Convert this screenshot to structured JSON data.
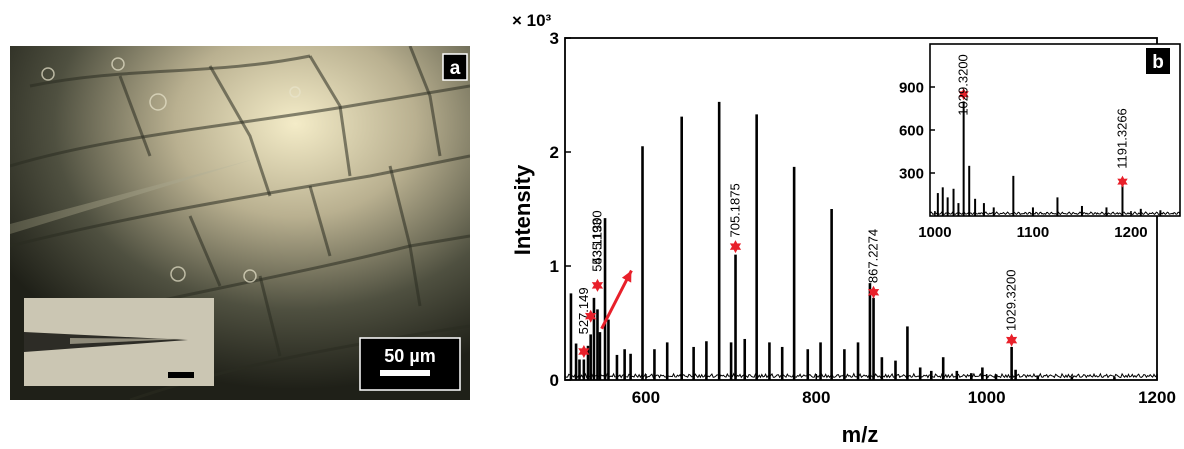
{
  "panel_a": {
    "label": "a",
    "scale_bar_text": "50 µm"
  },
  "chart_data": {
    "type": "line",
    "panel_label": "b",
    "xlabel": "m/z",
    "ylabel": "Intensity",
    "y_multiplier": "× 10³",
    "xlim": [
      505,
      1200
    ],
    "ylim": [
      0,
      3000
    ],
    "x_ticks": [
      600,
      800,
      1000,
      1200
    ],
    "y_ticks": [
      0,
      1000,
      2000,
      3000
    ],
    "y_tick_labels": [
      "0",
      "1",
      "2",
      "3"
    ],
    "peaks": [
      {
        "x": 512,
        "y": 760
      },
      {
        "x": 518,
        "y": 320
      },
      {
        "x": 522,
        "y": 180
      },
      {
        "x": 527.149,
        "y": 180
      },
      {
        "x": 532,
        "y": 300
      },
      {
        "x": 535.13,
        "y": 400
      },
      {
        "x": 539,
        "y": 720
      },
      {
        "x": 543.1193,
        "y": 620
      },
      {
        "x": 546,
        "y": 420
      },
      {
        "x": 552,
        "y": 1420
      },
      {
        "x": 556,
        "y": 530
      },
      {
        "x": 566,
        "y": 220
      },
      {
        "x": 575,
        "y": 270
      },
      {
        "x": 582,
        "y": 230
      },
      {
        "x": 596,
        "y": 2050
      },
      {
        "x": 610,
        "y": 270
      },
      {
        "x": 625,
        "y": 330
      },
      {
        "x": 642,
        "y": 2310
      },
      {
        "x": 656,
        "y": 290
      },
      {
        "x": 671,
        "y": 340
      },
      {
        "x": 686,
        "y": 2440
      },
      {
        "x": 700,
        "y": 330
      },
      {
        "x": 705.1875,
        "y": 1100
      },
      {
        "x": 716,
        "y": 360
      },
      {
        "x": 730,
        "y": 2330
      },
      {
        "x": 745,
        "y": 330
      },
      {
        "x": 760,
        "y": 290
      },
      {
        "x": 774,
        "y": 1870
      },
      {
        "x": 790,
        "y": 270
      },
      {
        "x": 805,
        "y": 330
      },
      {
        "x": 818,
        "y": 1500
      },
      {
        "x": 833,
        "y": 270
      },
      {
        "x": 849,
        "y": 330
      },
      {
        "x": 863,
        "y": 850
      },
      {
        "x": 867.2274,
        "y": 720
      },
      {
        "x": 877,
        "y": 200
      },
      {
        "x": 893,
        "y": 170
      },
      {
        "x": 907,
        "y": 470
      },
      {
        "x": 922,
        "y": 110
      },
      {
        "x": 935,
        "y": 80
      },
      {
        "x": 949,
        "y": 200
      },
      {
        "x": 965,
        "y": 80
      },
      {
        "x": 982,
        "y": 60
      },
      {
        "x": 995,
        "y": 110
      },
      {
        "x": 1011,
        "y": 50
      },
      {
        "x": 1029.32,
        "y": 290
      },
      {
        "x": 1034,
        "y": 90
      },
      {
        "x": 1060,
        "y": 40
      },
      {
        "x": 1100,
        "y": 30
      },
      {
        "x": 1150,
        "y": 25
      }
    ],
    "peak_labels": [
      {
        "x": 527.149,
        "y": 180,
        "text": "527.149",
        "star_y": 250,
        "text_y": 400
      },
      {
        "x": 535.13,
        "y": 400,
        "text": "535.1300",
        "star_y": 560,
        "text_y": 0
      },
      {
        "x": 543.1193,
        "y": 620,
        "text": "543.1193",
        "star_y": 830,
        "text_y": 950
      },
      {
        "x": 705.1875,
        "y": 1100,
        "text": "705.1875",
        "star_y": 1170,
        "text_y": 1250
      },
      {
        "x": 867.2274,
        "y": 720,
        "text": "867.2274",
        "star_y": 770,
        "text_y": 850
      },
      {
        "x": 1029.32,
        "y": 290,
        "text": "1029.3200",
        "star_y": 350,
        "text_y": 430
      }
    ],
    "arrow": {
      "from_x": 548,
      "from_y": 450,
      "to_x": 583,
      "to_y": 960
    },
    "inset": {
      "type": "line",
      "xlim": [
        995,
        1250
      ],
      "ylim": [
        0,
        1200
      ],
      "x_ticks": [
        1000,
        1100,
        1200
      ],
      "y_ticks": [
        300,
        600,
        900
      ],
      "peaks": [
        {
          "x": 1003,
          "y": 160
        },
        {
          "x": 1008,
          "y": 200
        },
        {
          "x": 1013,
          "y": 130
        },
        {
          "x": 1019,
          "y": 190
        },
        {
          "x": 1024,
          "y": 90
        },
        {
          "x": 1029.32,
          "y": 800
        },
        {
          "x": 1035,
          "y": 350
        },
        {
          "x": 1041,
          "y": 120
        },
        {
          "x": 1050,
          "y": 90
        },
        {
          "x": 1060,
          "y": 60
        },
        {
          "x": 1080,
          "y": 280
        },
        {
          "x": 1100,
          "y": 60
        },
        {
          "x": 1125,
          "y": 130
        },
        {
          "x": 1150,
          "y": 70
        },
        {
          "x": 1175,
          "y": 60
        },
        {
          "x": 1191.3266,
          "y": 240
        },
        {
          "x": 1210,
          "y": 50
        },
        {
          "x": 1230,
          "y": 40
        }
      ],
      "peak_labels": [
        {
          "x": 1029.32,
          "y": 800,
          "text": "1029.3200",
          "star_y": 850,
          "text_y": 700
        },
        {
          "x": 1191.3266,
          "y": 240,
          "text": "1191.3266",
          "star_y": 240,
          "text_y": 330
        }
      ]
    }
  }
}
